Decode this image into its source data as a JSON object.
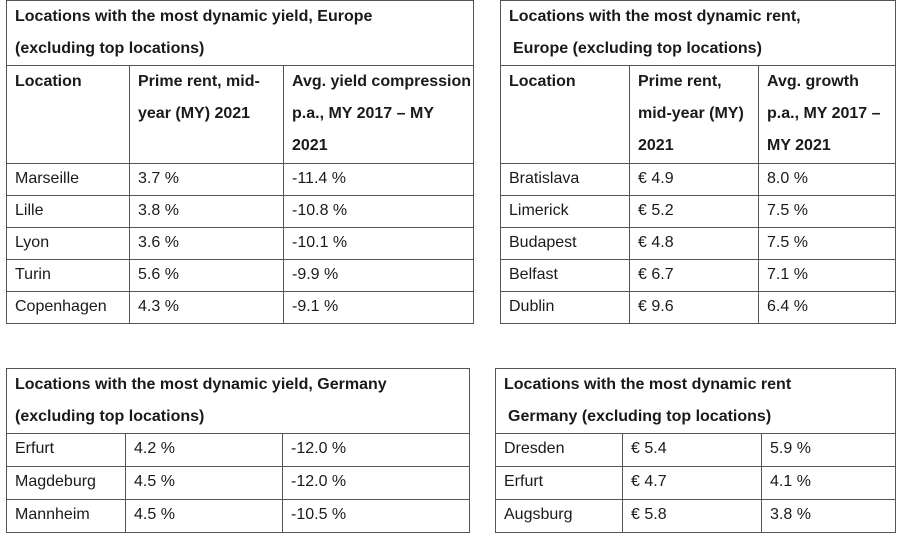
{
  "table_eu_yield": {
    "title_line1": "Locations with the most dynamic yield, Europe",
    "title_line2": "(excluding top locations)",
    "headers": [
      "Location",
      "Prime rent, mid-year (MY) 2021",
      "Avg. yield compression p.a., MY 2017 – MY 2021"
    ],
    "rows": [
      [
        "Marseille",
        "3.7 %",
        "-11.4 %"
      ],
      [
        "Lille",
        "3.8 %",
        "-10.8 %"
      ],
      [
        "Lyon",
        "3.6 %",
        "-10.1 %"
      ],
      [
        "Turin",
        "5.6 %",
        "-9.9 %"
      ],
      [
        "Copenhagen",
        "4.3 %",
        "-9.1 %"
      ]
    ]
  },
  "table_eu_rent": {
    "title_line1": "Locations with the most dynamic rent,",
    "title_line2": "Europe (excluding top locations)",
    "headers": [
      "Location",
      "Prime rent, mid-year (MY) 2021",
      "Avg. growth p.a., MY 2017 – MY 2021"
    ],
    "rows": [
      [
        "Bratislava",
        "€ 4.9",
        "8.0 %"
      ],
      [
        "Limerick",
        "€ 5.2",
        "7.5 %"
      ],
      [
        "Budapest",
        "€ 4.8",
        "7.5 %"
      ],
      [
        "Belfast",
        "€ 6.7",
        "7.1 %"
      ],
      [
        "Dublin",
        "€ 9.6",
        "6.4 %"
      ]
    ]
  },
  "table_de_yield": {
    "title_line1": "Locations with the most dynamic yield, Germany",
    "title_line2": "(excluding top locations)",
    "rows": [
      [
        "Erfurt",
        "4.2 %",
        "-12.0 %"
      ],
      [
        "Magdeburg",
        "4.5 %",
        "-12.0 %"
      ],
      [
        "Mannheim",
        "4.5 %",
        "-10.5 %"
      ]
    ]
  },
  "table_de_rent": {
    "title_line1": "Locations with the most dynamic rent",
    "title_line2": "Germany (excluding top locations)",
    "rows": [
      [
        "Dresden",
        "€ 5.4",
        "5.9 %"
      ],
      [
        "Erfurt",
        "€ 4.7",
        "4.1 %"
      ],
      [
        "Augsburg",
        "€ 5.8",
        "3.8 %"
      ]
    ]
  }
}
